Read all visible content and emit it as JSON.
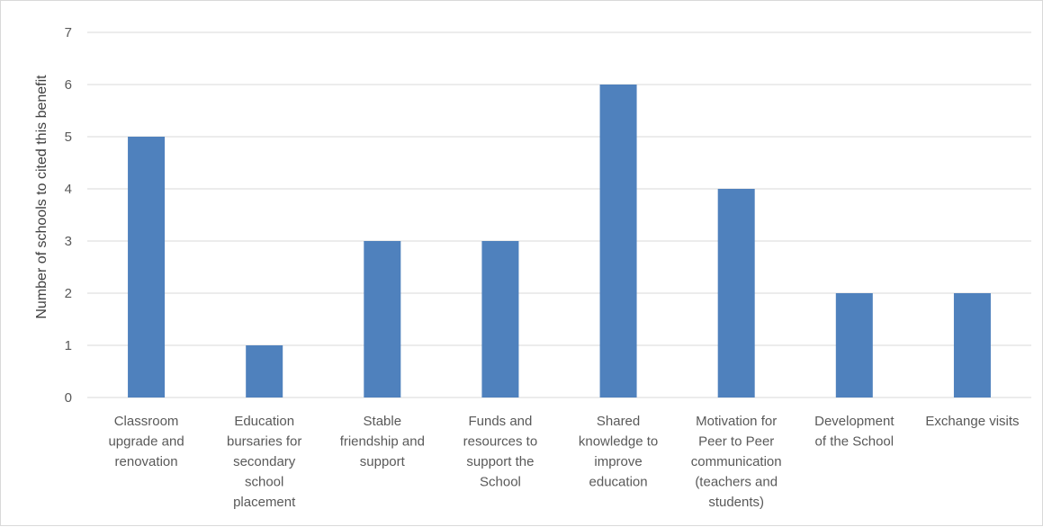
{
  "chart_data": {
    "type": "bar",
    "categories": [
      "Classroom upgrade and renovation",
      "Education bursaries for secondary school placement",
      "Stable friendship and support",
      "Funds and resources to support the School",
      "Shared knowledge to improve education",
      "Motivation for Peer to Peer communication (teachers and students)",
      "Development of the School",
      "Exchange visits"
    ],
    "category_lines": [
      [
        "Classroom",
        "upgrade and",
        "renovation"
      ],
      [
        "Education",
        "bursaries for",
        "secondary",
        "school",
        "placement"
      ],
      [
        "Stable",
        "friendship and",
        "support"
      ],
      [
        "Funds and",
        "resources to",
        "support the",
        "School"
      ],
      [
        "Shared",
        "knowledge to",
        "improve",
        "education"
      ],
      [
        "Motivation for",
        "Peer to Peer",
        "communication",
        "(teachers and",
        "students)"
      ],
      [
        "Development",
        "of the School"
      ],
      [
        "Exchange visits"
      ]
    ],
    "values": [
      5,
      1,
      3,
      3,
      6,
      4,
      2,
      2
    ],
    "title": "",
    "xlabel": "",
    "ylabel": "Number of schools to cited this benefit",
    "ylim": [
      0,
      7
    ],
    "yticks": [
      "0",
      "1",
      "2",
      "3",
      "4",
      "5",
      "6",
      "7"
    ],
    "grid": true,
    "legend": "none",
    "bar_color": "#4f81bd",
    "grid_color": "#d9d9d9"
  }
}
